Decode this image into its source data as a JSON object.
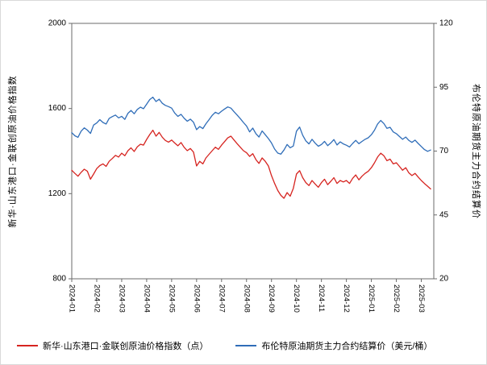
{
  "chart": {
    "left_axis_title": "新华·山东港口·金联创原油价格指数",
    "right_axis_title": "布伦特原油期货主力合约结算价",
    "legend": [
      {
        "label": "新华·山东港口·金联创原油价格指数（点）",
        "color": "#d62420"
      },
      {
        "label": "布伦特原油期货主力合约结算价（美元/桶）",
        "color": "#2f6db8"
      }
    ]
  },
  "chart_data": {
    "type": "line",
    "title": "",
    "x_tick_labels": [
      "2024-01",
      "2024-02",
      "2024-03",
      "2024-04",
      "2024-05",
      "2024-06",
      "2024-07",
      "2024-08",
      "2024-09",
      "2024-10",
      "2024-11",
      "2024-12",
      "2025-01",
      "2025-02",
      "2025-03"
    ],
    "x_domain": [
      0,
      14.5
    ],
    "left_axis": {
      "label": "新华·山东港口·金联创原油价格指数",
      "min": 800,
      "max": 2000,
      "ticks": [
        800,
        1200,
        1600,
        2000
      ]
    },
    "right_axis": {
      "label": "布伦特原油期货主力合约结算价",
      "min": 20,
      "max": 120,
      "ticks": [
        20,
        45,
        70,
        95,
        120
      ]
    },
    "grid": false,
    "legend_position": "bottom",
    "series": [
      {
        "name": "新华·山东港口·金联创原油价格指数（点）",
        "axis": "left",
        "color": "#d62420",
        "x_start": 0,
        "x_step": 0.125,
        "values": [
          1310,
          1295,
          1282,
          1300,
          1315,
          1305,
          1268,
          1292,
          1318,
          1332,
          1340,
          1328,
          1352,
          1365,
          1380,
          1372,
          1390,
          1378,
          1402,
          1415,
          1398,
          1420,
          1432,
          1428,
          1455,
          1478,
          1498,
          1470,
          1488,
          1465,
          1450,
          1442,
          1452,
          1438,
          1425,
          1440,
          1418,
          1402,
          1412,
          1395,
          1330,
          1352,
          1340,
          1368,
          1385,
          1402,
          1418,
          1408,
          1428,
          1445,
          1462,
          1470,
          1452,
          1435,
          1418,
          1402,
          1392,
          1375,
          1388,
          1360,
          1342,
          1368,
          1352,
          1330,
          1285,
          1248,
          1215,
          1192,
          1178,
          1205,
          1188,
          1225,
          1292,
          1308,
          1275,
          1252,
          1238,
          1262,
          1245,
          1230,
          1252,
          1268,
          1242,
          1258,
          1275,
          1248,
          1262,
          1255,
          1262,
          1248,
          1272,
          1288,
          1265,
          1282,
          1295,
          1305,
          1322,
          1345,
          1372,
          1390,
          1378,
          1355,
          1362,
          1340,
          1345,
          1328,
          1310,
          1322,
          1298,
          1285,
          1295,
          1278,
          1262,
          1248,
          1235,
          1222
        ]
      },
      {
        "name": "布伦特原油期货主力合约结算价（美元/桶）",
        "axis": "right",
        "color": "#2f6db8",
        "x_start": 0,
        "x_step": 0.125,
        "values": [
          77.2,
          76.0,
          75.4,
          77.8,
          79.1,
          78.2,
          76.9,
          80.2,
          81.0,
          82.3,
          81.2,
          80.6,
          82.8,
          83.5,
          84.1,
          83.0,
          83.6,
          82.4,
          84.8,
          85.9,
          84.6,
          86.3,
          87.2,
          86.6,
          88.4,
          90.2,
          91.1,
          89.4,
          90.3,
          88.7,
          87.9,
          87.4,
          86.8,
          84.9,
          83.6,
          84.4,
          82.9,
          81.7,
          82.5,
          81.3,
          78.4,
          79.6,
          78.8,
          80.7,
          82.3,
          84.0,
          85.2,
          84.6,
          85.6,
          86.5,
          87.3,
          86.8,
          85.4,
          84.1,
          82.7,
          81.2,
          79.8,
          77.5,
          79.0,
          76.8,
          75.5,
          77.9,
          76.4,
          74.9,
          73.2,
          70.8,
          69.2,
          68.8,
          70.4,
          72.6,
          71.3,
          72.0,
          77.8,
          79.4,
          76.2,
          74.0,
          72.8,
          74.6,
          73.1,
          71.9,
          72.6,
          73.8,
          72.1,
          73.2,
          74.5,
          72.4,
          73.6,
          72.8,
          72.3,
          71.6,
          73.0,
          74.2,
          72.9,
          73.8,
          74.6,
          75.2,
          76.4,
          78.2,
          80.6,
          82.0,
          80.8,
          78.9,
          79.3,
          77.5,
          76.8,
          75.7,
          74.6,
          75.5,
          74.2,
          73.4,
          74.3,
          73.0,
          71.8,
          70.6,
          69.9,
          70.4
        ]
      }
    ]
  }
}
